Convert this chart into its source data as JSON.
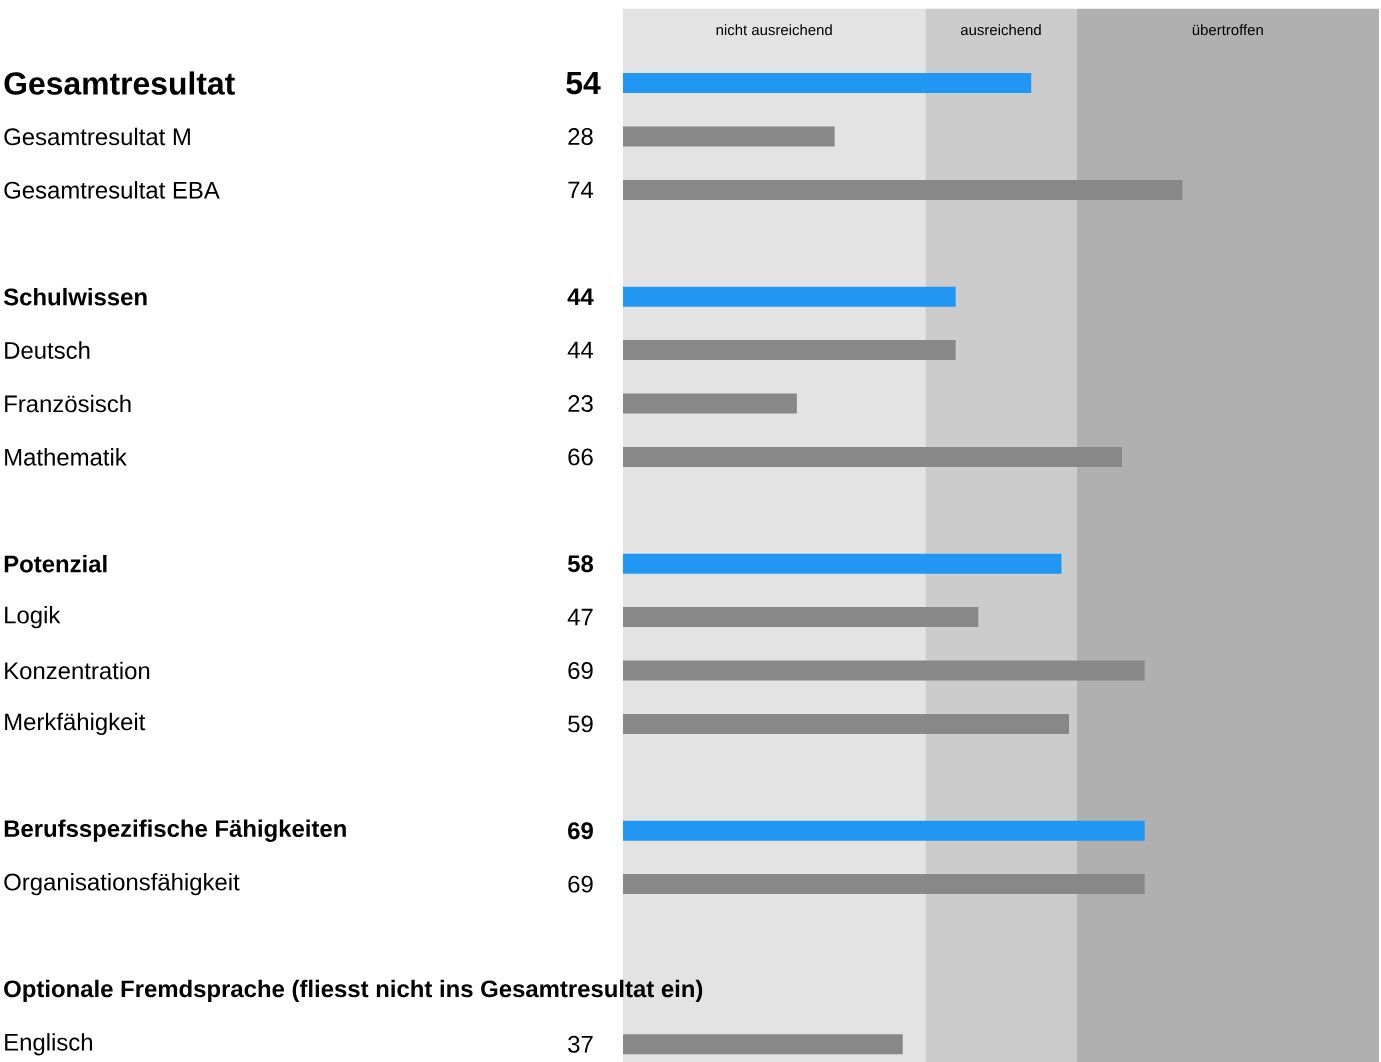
{
  "chart_data": {
    "type": "bar",
    "orientation": "horizontal",
    "data_labels": true,
    "categories": [
      "Gesamtresultat",
      "Gesamtresultat M",
      "Gesamtresultat EBA",
      null,
      "Schulwissen",
      "Deutsch",
      "Französisch",
      "Mathematik",
      null,
      "Potenzial",
      "Logik",
      "Konzentration",
      "Merkfähigkeit",
      null,
      "Berufsspezifische Fähigkeiten",
      "Organisationsfähigkeit",
      null,
      "Optionale Fremdsprache (fliesst nicht ins Gesamtresultat ein)",
      "Englisch"
    ],
    "values": [
      54,
      28,
      74,
      null,
      44,
      44,
      23,
      66,
      null,
      58,
      47,
      69,
      59,
      null,
      69,
      69,
      null,
      null,
      37
    ],
    "colors": [
      "#2196f3",
      "#888888",
      "#888888",
      null,
      "#2196f3",
      "#888888",
      "#888888",
      "#888888",
      null,
      "#2196f3",
      "#888888",
      "#888888",
      "#888888",
      null,
      "#2196f3",
      "#888888",
      null,
      null,
      "#888888"
    ],
    "xlim": [
      0,
      100
    ],
    "bands": [
      {
        "axis": "x",
        "from": 0,
        "to": 40,
        "label": "nicht ausreichend",
        "color": "#e3e3e3"
      },
      {
        "axis": "x",
        "from": 40,
        "to": 60,
        "label": "ausreichend",
        "color": "#cccccc"
      },
      {
        "axis": "x",
        "from": 60,
        "to": 100,
        "label": "übertroffen",
        "color": "#b0b0b0"
      }
    ]
  }
}
